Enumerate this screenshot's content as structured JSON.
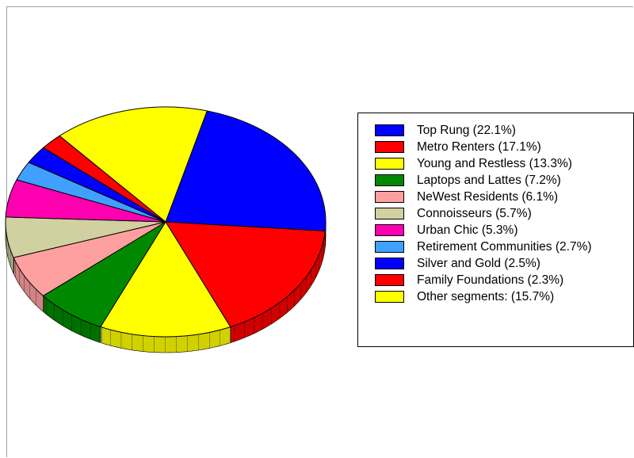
{
  "chart_data": {
    "type": "pie",
    "title": "",
    "style": "3d",
    "legend": "right",
    "slices": [
      {
        "label": "Top Rung (22.1%)",
        "value": 22.1,
        "color": "#0000ff"
      },
      {
        "label": "Metro Renters (17.1%)",
        "value": 17.1,
        "color": "#ff0000"
      },
      {
        "label": "Young and Restless (13.3%)",
        "value": 13.3,
        "color": "#ffff00"
      },
      {
        "label": "Laptops and Lattes (7.2%)",
        "value": 7.2,
        "color": "#008800"
      },
      {
        "label": "NeWest Residents (6.1%)",
        "value": 6.1,
        "color": "#ffa0a0"
      },
      {
        "label": "Connoisseurs (5.7%)",
        "value": 5.7,
        "color": "#d0d0a0"
      },
      {
        "label": "Urban Chic (5.3%)",
        "value": 5.3,
        "color": "#ff00b0"
      },
      {
        "label": "Retirement Communities (2.7%)",
        "value": 2.7,
        "color": "#40a0ff"
      },
      {
        "label": "Silver and Gold (2.5%)",
        "value": 2.5,
        "color": "#0000ff"
      },
      {
        "label": "Family Foundations (2.3%)",
        "value": 2.3,
        "color": "#ff0000"
      },
      {
        "label": "Other segments: (15.7%)",
        "value": 15.7,
        "color": "#ffff00"
      }
    ]
  }
}
